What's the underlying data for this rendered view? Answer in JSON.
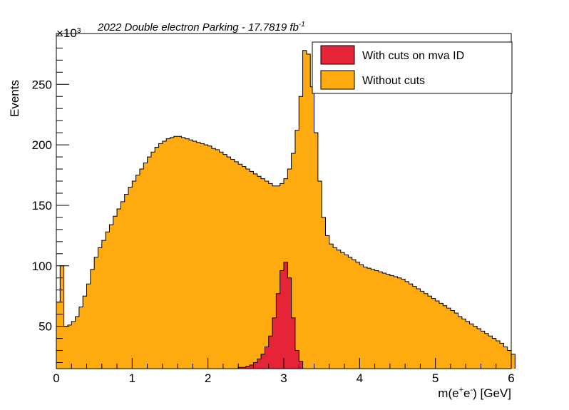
{
  "colors": {
    "without_cuts": "#FFAA0E",
    "with_cuts": "#E52537",
    "axis": "#000000",
    "background": "#ffffff"
  },
  "chart_data": {
    "type": "histogram",
    "title_main": "2022 Double electron Parking - 17.7819 fb",
    "title_sup": "-1",
    "xlabel": {
      "base": "m(e",
      "sup1": "+",
      "mid": "e",
      "sup2": "-",
      "end": ") [GeV]"
    },
    "ylabel": "Events",
    "y_multiplier": {
      "base": "×10",
      "exp": "3"
    },
    "xlim": [
      0,
      6
    ],
    "ylim": [
      15,
      292
    ],
    "x_ticks": [
      "0",
      "1",
      "2",
      "3",
      "4",
      "5",
      "6"
    ],
    "y_ticks": [
      "50",
      "100",
      "150",
      "200",
      "250"
    ],
    "y_tick_values": [
      50,
      100,
      150,
      200,
      250
    ],
    "bin_width": 0.05,
    "legend": {
      "position": "top-right",
      "entries": [
        "With cuts on mva ID",
        "Without cuts"
      ]
    },
    "series": [
      {
        "name": "Without cuts",
        "x_start": 0,
        "values": [
          70,
          100,
          50,
          51,
          54,
          58,
          66,
          75,
          85,
          97,
          107,
          115,
          121,
          128,
          134,
          141,
          147,
          153,
          159,
          165,
          170,
          175,
          180,
          185,
          190,
          194,
          198,
          201,
          203,
          205,
          206,
          207,
          207,
          206,
          205,
          204,
          203,
          202,
          201,
          200,
          199,
          197,
          196,
          194,
          192,
          190,
          188,
          186,
          184,
          182,
          180,
          178,
          176,
          174,
          172,
          170,
          168,
          166,
          166,
          168,
          172,
          180,
          193,
          212,
          240,
          278,
          275,
          248,
          210,
          170,
          140,
          125,
          118,
          115,
          113,
          111,
          109,
          107,
          105,
          103,
          101,
          99,
          98,
          97,
          96,
          95,
          94,
          93,
          92,
          91,
          90,
          89,
          87,
          85,
          83,
          81,
          79,
          77,
          75,
          73,
          71,
          69,
          67,
          65,
          63,
          61,
          58,
          56,
          54,
          52,
          50,
          48,
          46,
          44,
          42,
          40,
          38,
          36,
          33,
          30,
          27
        ]
      },
      {
        "name": "With cuts on mva ID",
        "x_start": 2.3,
        "values": [
          15,
          15,
          16,
          16,
          17,
          18,
          20,
          23,
          27,
          33,
          42,
          57,
          77,
          96,
          103,
          90,
          57,
          30,
          21
        ]
      }
    ]
  }
}
